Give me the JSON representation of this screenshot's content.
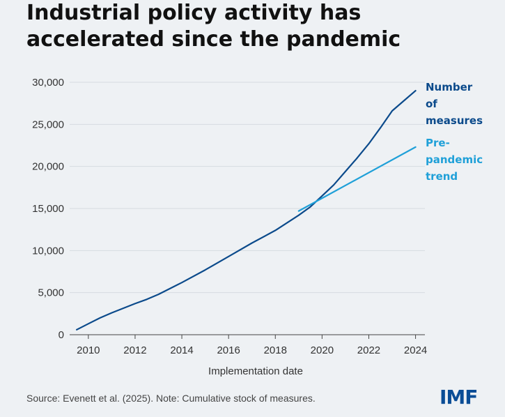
{
  "title": "Industrial policy activity has accelerated since the pandemic",
  "source": "Source: Evenett et al. (2025). Note: Cumulative stock of measures.",
  "logo": {
    "text": "IMF",
    "color": "#0a4d96"
  },
  "colors": {
    "background": "#eef1f4",
    "measures": "#0b4a8b",
    "trend": "#1fa0d8",
    "grid": "#d6dbe1",
    "axis": "#444444"
  },
  "chart_data": {
    "type": "line",
    "title": "Industrial policy activity has accelerated since the pandemic",
    "xlabel": "Implementation date",
    "ylabel": "",
    "xlim": [
      2009.2,
      2024.4
    ],
    "ylim": [
      0,
      30000
    ],
    "x_ticks": [
      2010,
      2012,
      2014,
      2016,
      2018,
      2020,
      2022,
      2024
    ],
    "x_tick_labels": [
      "2010",
      "2012",
      "2014",
      "2016",
      "2018",
      "2020",
      "2022",
      "2024"
    ],
    "y_ticks": [
      0,
      5000,
      10000,
      15000,
      20000,
      25000,
      30000
    ],
    "y_tick_labels": [
      "0",
      "5,000",
      "10,000",
      "15,000",
      "20,000",
      "25,000",
      "30,000"
    ],
    "grid": true,
    "legend": "direct labels at line ends",
    "series": [
      {
        "name": "Number of measures",
        "label_lines": [
          "Number",
          "of",
          "measures"
        ],
        "color": "#0b4a8b",
        "x": [
          2009.5,
          2010,
          2010.5,
          2011,
          2012,
          2012.5,
          2013,
          2014,
          2015,
          2016,
          2017,
          2018,
          2019,
          2019.5,
          2020,
          2020.5,
          2021,
          2021.5,
          2022,
          2022.5,
          2023,
          2023.5,
          2024
        ],
        "y": [
          600,
          1300,
          2000,
          2600,
          3700,
          4200,
          4800,
          6200,
          7700,
          9300,
          10900,
          12400,
          14200,
          15200,
          16500,
          17800,
          19400,
          21000,
          22700,
          24600,
          26600,
          27800,
          29000
        ]
      },
      {
        "name": "Pre-pandemic trend",
        "label_lines": [
          "Pre-",
          "pandemic",
          "trend"
        ],
        "color": "#1fa0d8",
        "x": [
          2019,
          2024
        ],
        "y": [
          14700,
          22300
        ]
      }
    ]
  }
}
